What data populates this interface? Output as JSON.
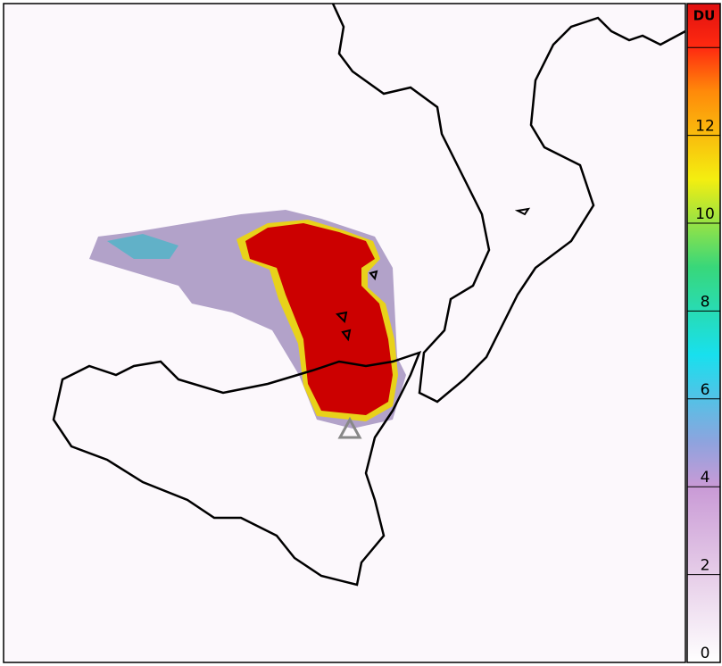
{
  "colorbar": {
    "label": "DU",
    "vlim": [
      0,
      15
    ],
    "ticks": [
      0,
      2,
      4,
      6,
      8,
      10,
      12
    ],
    "tick_marks": [
      2,
      4,
      6,
      8,
      10,
      12,
      14
    ],
    "colormap": [
      {
        "value": 0,
        "color": "#ffffff"
      },
      {
        "value": 2,
        "color": "#e6cde8"
      },
      {
        "value": 4,
        "color": "#c99ad6"
      },
      {
        "value": 5,
        "color": "#8fa3de"
      },
      {
        "value": 7,
        "color": "#18e0ee"
      },
      {
        "value": 9,
        "color": "#38d77a"
      },
      {
        "value": 11,
        "color": "#f4ee10"
      },
      {
        "value": 13,
        "color": "#ff8a0a"
      },
      {
        "value": 14,
        "color": "#ff2a10"
      },
      {
        "value": 15,
        "color": "#e01010"
      }
    ]
  }
}
